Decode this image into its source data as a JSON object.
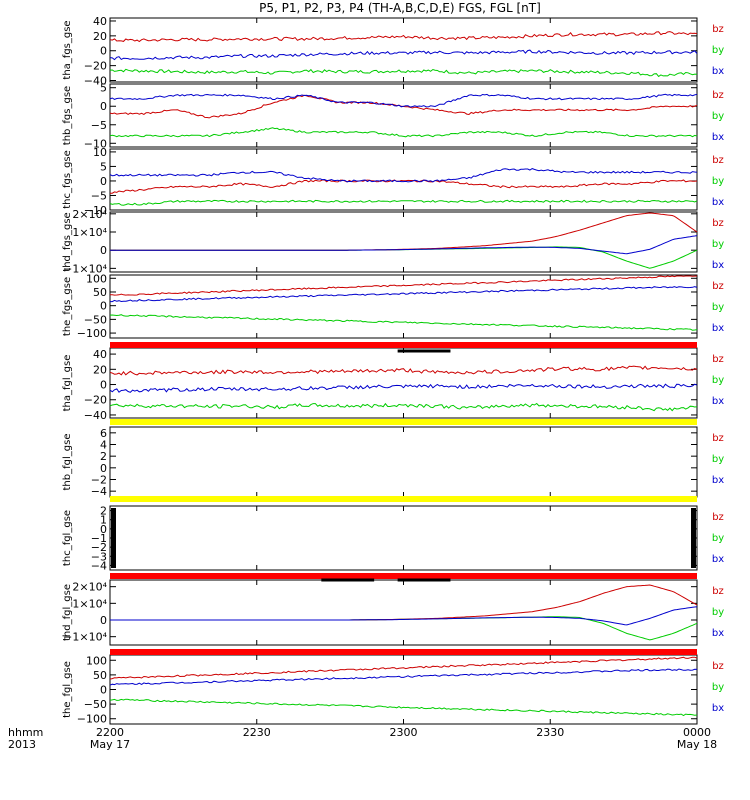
{
  "title": "P5, P1, P2, P3, P4 (TH-A,B,C,D,E) FGS, FGL [nT]",
  "colors": {
    "bz": "#cc0000",
    "by": "#00cc00",
    "bx": "#0000cc",
    "red_bar": "#ff0000",
    "yellow_bar": "#ffff00",
    "black_bar": "#000000"
  },
  "time_axis": {
    "row_label_1": "hhmm",
    "row_label_2": "2013",
    "ticks": [
      {
        "t": "2200",
        "date": "May 17"
      },
      {
        "t": "2230",
        "date": ""
      },
      {
        "t": "2300",
        "date": ""
      },
      {
        "t": "2330",
        "date": ""
      },
      {
        "t": "0000",
        "date": "May 18"
      }
    ]
  },
  "chart_data": [
    {
      "type": "line",
      "ylabel": "tha_fgs_gse",
      "ylim": [
        -42,
        44
      ],
      "yticks": [
        "40",
        "20",
        "0",
        "−20",
        "−40"
      ],
      "ytick_values": [
        40,
        20,
        0,
        -20,
        -40
      ],
      "series": [
        {
          "name": "bz",
          "values": [
            14,
            14,
            15,
            15,
            16,
            16,
            16,
            17,
            18,
            19,
            17,
            17,
            18,
            20,
            22,
            22,
            22,
            24,
            22
          ]
        },
        {
          "name": "by",
          "values": [
            -26,
            -27,
            -28,
            -29,
            -28,
            -30,
            -27,
            -28,
            -28,
            -27,
            -27,
            -30,
            -28,
            -27,
            -28,
            -29,
            -30,
            -33,
            -30
          ]
        },
        {
          "name": "bx",
          "values": [
            -10,
            -10,
            -9,
            -9,
            -7,
            -7,
            -5,
            -4,
            -3,
            -3,
            -2,
            -3,
            -2,
            -1,
            -2,
            -3,
            -3,
            -2,
            -2
          ]
        }
      ]
    },
    {
      "type": "line",
      "ylabel": "thb_fgs_gse",
      "ylim": [
        -11,
        6
      ],
      "yticks": [
        "5",
        "0",
        "−5",
        "−10"
      ],
      "ytick_values": [
        5,
        0,
        -5,
        -10
      ],
      "series": [
        {
          "name": "bz",
          "values": [
            -2,
            -2,
            -1,
            -3,
            -2,
            1,
            3,
            1,
            1,
            0,
            -1,
            -2,
            -1,
            -1,
            -1,
            -1,
            -1,
            0,
            0
          ]
        },
        {
          "name": "by",
          "values": [
            -8,
            -8,
            -8,
            -8,
            -7,
            -6,
            -7,
            -7,
            -7,
            -8,
            -8,
            -7,
            -7,
            -8,
            -7,
            -7,
            -8,
            -8,
            -8
          ]
        },
        {
          "name": "bx",
          "values": [
            2,
            2,
            3,
            3,
            3,
            2,
            3,
            1,
            1,
            0,
            0,
            3,
            3,
            2,
            2,
            2,
            2,
            3,
            3
          ]
        }
      ]
    },
    {
      "type": "line",
      "ylabel": "thc_fgs_gse",
      "ylim": [
        -10,
        11
      ],
      "yticks": [
        "10",
        "5",
        "0",
        "−5",
        "−10"
      ],
      "ytick_values": [
        10,
        5,
        0,
        -5,
        -10
      ],
      "series": [
        {
          "name": "bz",
          "values": [
            -4,
            -3,
            -2,
            -2,
            -1,
            -2,
            0,
            0,
            0,
            0,
            0,
            -1,
            -2,
            -2,
            -2,
            -1,
            -1,
            0,
            0
          ]
        },
        {
          "name": "by",
          "values": [
            -8,
            -8,
            -7,
            -7,
            -7,
            -7,
            -7,
            -7,
            -7,
            -7,
            -7,
            -7,
            -7,
            -7,
            -7,
            -7,
            -7,
            -7,
            -7
          ]
        },
        {
          "name": "bx",
          "values": [
            2,
            2,
            2,
            2,
            3,
            3,
            1,
            0,
            0,
            0,
            0,
            1,
            4,
            4,
            3,
            3,
            3,
            3,
            3
          ]
        }
      ]
    },
    {
      "type": "line",
      "ylabel": "thd_fgs_gse",
      "ylim": [
        -12000,
        21000
      ],
      "yticks": [
        "2×10⁴",
        "1×10⁴",
        "0",
        "−1×10⁴"
      ],
      "ytick_values": [
        20000,
        10000,
        0,
        -10000
      ],
      "series": [
        {
          "name": "bz",
          "x": [
            0,
            20,
            40,
            48,
            56,
            64,
            72,
            76,
            80,
            84,
            88,
            92,
            96,
            100
          ],
          "values": [
            0,
            0,
            0,
            300,
            1000,
            2500,
            5000,
            7500,
            11000,
            15000,
            19000,
            20500,
            19000,
            10000
          ]
        },
        {
          "name": "by",
          "x": [
            0,
            20,
            40,
            48,
            56,
            64,
            72,
            76,
            80,
            84,
            88,
            92,
            96,
            100
          ],
          "values": [
            0,
            0,
            0,
            200,
            600,
            1000,
            1500,
            1800,
            1500,
            -1000,
            -6000,
            -10000,
            -6000,
            0
          ]
        },
        {
          "name": "bx",
          "x": [
            0,
            20,
            40,
            48,
            56,
            64,
            72,
            76,
            80,
            84,
            88,
            92,
            96,
            100
          ],
          "values": [
            0,
            0,
            0,
            200,
            700,
            1300,
            1700,
            1500,
            1000,
            -500,
            -2000,
            500,
            6000,
            8000
          ]
        }
      ]
    },
    {
      "type": "line",
      "ylabel": "the_fgs_gse",
      "ylim": [
        -118,
        112
      ],
      "yticks": [
        "100",
        "50",
        "0",
        "−50",
        "−100"
      ],
      "ytick_values": [
        100,
        50,
        0,
        -50,
        -100
      ],
      "series": [
        {
          "name": "bz",
          "values": [
            38,
            42,
            46,
            50,
            54,
            58,
            62,
            66,
            70,
            74,
            78,
            82,
            86,
            90,
            94,
            98,
            102,
            106,
            110
          ]
        },
        {
          "name": "by",
          "values": [
            -34,
            -37,
            -40,
            -43,
            -46,
            -49,
            -52,
            -55,
            -58,
            -61,
            -64,
            -67,
            -70,
            -73,
            -76,
            -79,
            -82,
            -85,
            -88
          ]
        },
        {
          "name": "bx",
          "values": [
            17,
            20,
            23,
            26,
            29,
            32,
            35,
            38,
            41,
            44,
            47,
            50,
            53,
            56,
            59,
            62,
            65,
            67,
            69
          ]
        }
      ]
    },
    {
      "type": "line",
      "ylabel": "tha_fgl_gse",
      "ylim": [
        -44,
        48
      ],
      "yticks": [
        "40",
        "20",
        "0",
        "−20",
        "−40"
      ],
      "ytick_values": [
        40,
        20,
        0,
        -20,
        -40
      ],
      "series": [
        {
          "name": "bz",
          "values": [
            15,
            15,
            16,
            16,
            17,
            16,
            17,
            17,
            18,
            19,
            16,
            16,
            17,
            19,
            21,
            20,
            22,
            22,
            20
          ]
        },
        {
          "name": "by",
          "values": [
            -27,
            -28,
            -28,
            -29,
            -28,
            -30,
            -27,
            -28,
            -28,
            -27,
            -28,
            -31,
            -28,
            -27,
            -28,
            -29,
            -30,
            -33,
            -30
          ]
        },
        {
          "name": "bx",
          "values": [
            -8,
            -8,
            -7,
            -6,
            -6,
            -6,
            -5,
            -4,
            -3,
            -3,
            -2,
            -3,
            -2,
            -1,
            -2,
            -3,
            -2,
            -2,
            -2
          ]
        }
      ]
    },
    {
      "type": "line",
      "ylabel": "thb_fgl_gse",
      "ylim": [
        -5,
        7
      ],
      "yticks": [
        "6",
        "4",
        "2",
        "0",
        "−2",
        "−4"
      ],
      "ytick_values": [
        6,
        4,
        2,
        0,
        -2,
        -4
      ],
      "series": []
    },
    {
      "type": "line",
      "ylabel": "thc_fgl_gse",
      "ylim": [
        -4.5,
        2.5
      ],
      "yticks": [
        "2",
        "1",
        "0",
        "−1",
        "−2",
        "−3",
        "−4"
      ],
      "ytick_values": [
        2,
        1,
        0,
        -1,
        -2,
        -3,
        -4
      ],
      "series": []
    },
    {
      "type": "line",
      "ylabel": "thd_fgl_gse",
      "ylim": [
        -15000,
        24000
      ],
      "yticks": [
        "2×10⁴",
        "1×10⁴",
        "0",
        "−1×10⁴"
      ],
      "ytick_values": [
        20000,
        10000,
        0,
        -10000
      ],
      "series": [
        {
          "name": "bz",
          "x": [
            0,
            20,
            40,
            48,
            56,
            64,
            72,
            76,
            80,
            84,
            88,
            92,
            96,
            100
          ],
          "values": [
            0,
            0,
            0,
            300,
            1000,
            2500,
            5000,
            7500,
            11000,
            16000,
            20000,
            21000,
            17000,
            9000
          ]
        },
        {
          "name": "by",
          "x": [
            0,
            20,
            40,
            48,
            56,
            64,
            72,
            76,
            80,
            84,
            88,
            92,
            96,
            100
          ],
          "values": [
            0,
            0,
            0,
            300,
            800,
            1200,
            1700,
            2000,
            1500,
            -2000,
            -8000,
            -12000,
            -8000,
            -2000
          ]
        },
        {
          "name": "bx",
          "x": [
            0,
            20,
            40,
            48,
            56,
            64,
            72,
            76,
            80,
            84,
            88,
            92,
            96,
            100
          ],
          "values": [
            0,
            0,
            0,
            200,
            700,
            1300,
            1700,
            1500,
            1000,
            -500,
            -3000,
            1000,
            6000,
            8000
          ]
        }
      ]
    },
    {
      "type": "line",
      "ylabel": "the_fgl_gse",
      "ylim": [
        -118,
        118
      ],
      "yticks": [
        "100",
        "50",
        "0",
        "−50",
        "−100"
      ],
      "ytick_values": [
        100,
        50,
        0,
        -50,
        -100
      ],
      "series": [
        {
          "name": "bz",
          "values": [
            38,
            42,
            46,
            50,
            54,
            58,
            62,
            66,
            70,
            74,
            78,
            82,
            86,
            90,
            94,
            98,
            102,
            106,
            110
          ]
        },
        {
          "name": "by",
          "values": [
            -34,
            -37,
            -40,
            -43,
            -46,
            -49,
            -52,
            -55,
            -58,
            -61,
            -64,
            -67,
            -70,
            -73,
            -76,
            -79,
            -82,
            -85,
            -88
          ]
        },
        {
          "name": "bx",
          "values": [
            17,
            20,
            23,
            26,
            29,
            32,
            35,
            38,
            41,
            44,
            47,
            50,
            53,
            56,
            59,
            62,
            65,
            67,
            69
          ]
        }
      ]
    }
  ],
  "legend": [
    "bz",
    "by",
    "bx"
  ]
}
